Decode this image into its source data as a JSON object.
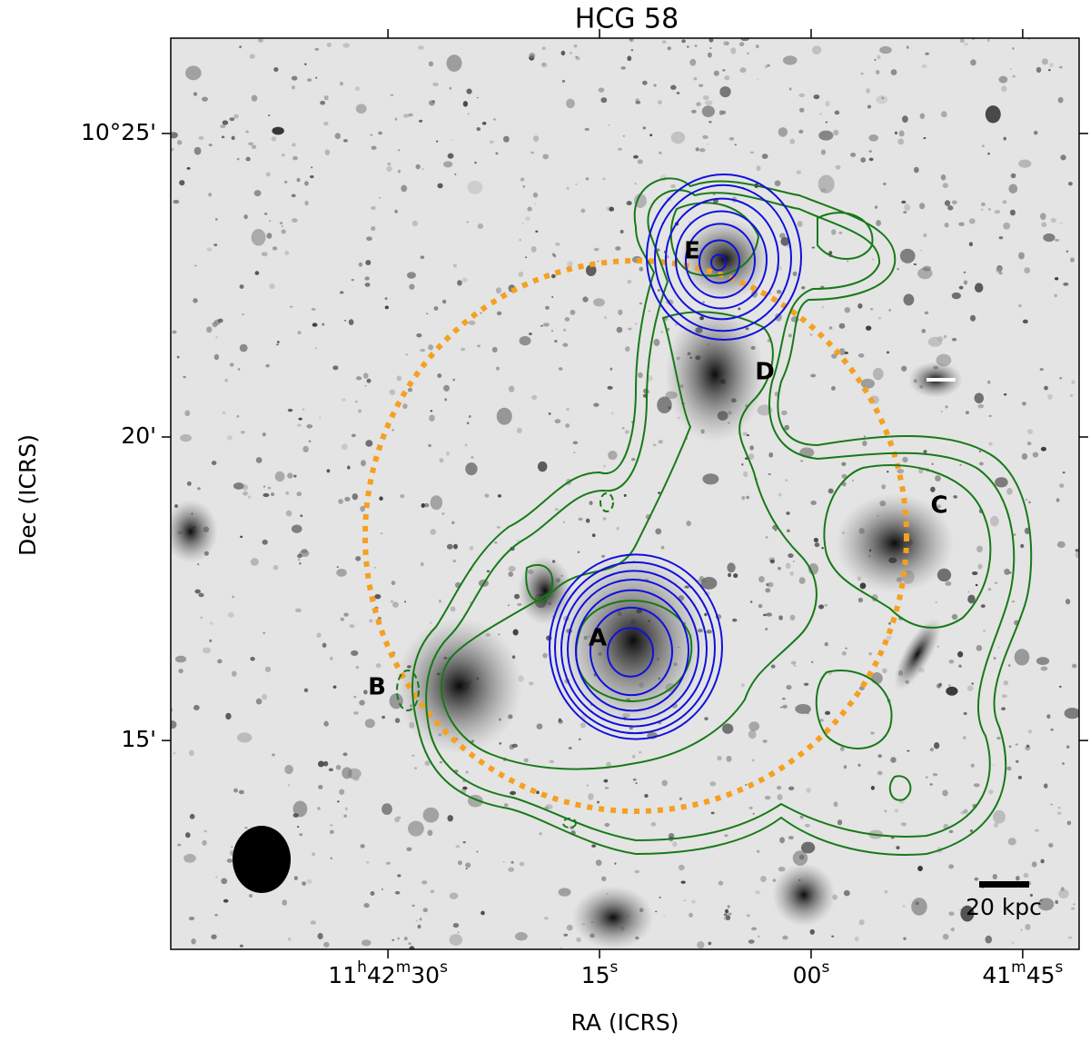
{
  "chart_data": {
    "type": "image",
    "title": "HCG 58",
    "xlabel": "RA (ICRS)",
    "ylabel": "Dec (ICRS)",
    "xlim": [
      105.4,
      41.0
    ],
    "ylim": [
      11.56,
      26.57
    ],
    "xticks": [
      {
        "value": 90,
        "label": "11h42m30s"
      },
      {
        "value": 75,
        "label": "15s"
      },
      {
        "value": 60,
        "label": "00s"
      },
      {
        "value": 45,
        "label": "41m45s"
      }
    ],
    "yticks": [
      {
        "value": 25,
        "label": "10°25'"
      },
      {
        "value": 20,
        "label": "20'"
      },
      {
        "value": 15,
        "label": "15'"
      }
    ],
    "annotations": [
      "A",
      "B",
      "C",
      "D",
      "E"
    ],
    "scale_bar": "20 kpc"
  }
}
